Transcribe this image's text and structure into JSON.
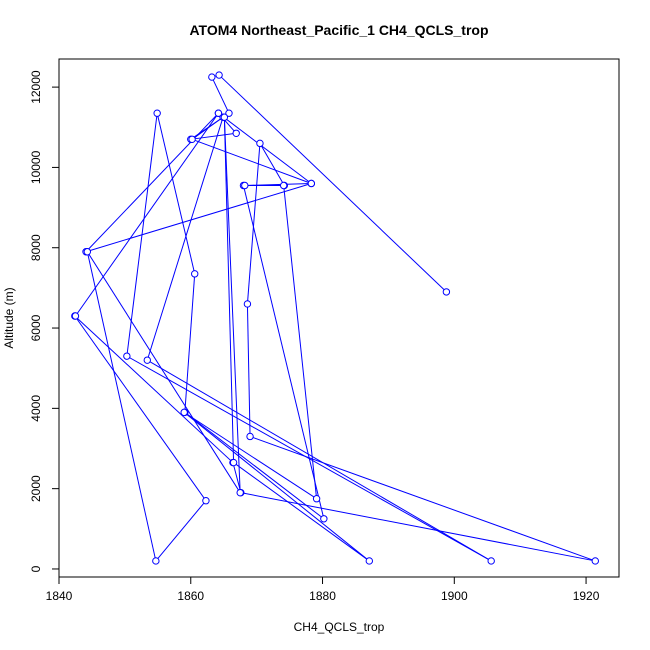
{
  "chart_data": {
    "type": "line",
    "title": "ATOM4 Northeast_Pacific_1 CH4_QCLS_trop",
    "xlabel": "CH4_QCLS_trop",
    "ylabel": "Altitude (m)",
    "xlim": [
      1840,
      1925
    ],
    "ylim": [
      -200,
      12700
    ],
    "xticks": [
      1840,
      1860,
      1880,
      1900,
      1920
    ],
    "yticks": [
      0,
      2000,
      4000,
      6000,
      8000,
      10000,
      12000
    ],
    "grid": false,
    "markers": "open-circle",
    "colors": {
      "series": "#0000ff",
      "axis": "#000000",
      "background": "#ffffff"
    },
    "series": [
      {
        "points": [
          [
            1898.8,
            6900
          ],
          [
            1864.3,
            12300
          ],
          [
            1863.2,
            12250
          ],
          [
            1865.8,
            11350
          ],
          [
            1860.0,
            10700
          ],
          [
            1866.9,
            10850
          ],
          [
            1864.2,
            11350
          ],
          [
            1844.1,
            7900
          ],
          [
            1878.3,
            9600
          ],
          [
            1860.2,
            10700
          ],
          [
            1864.9,
            11250
          ],
          [
            1853.4,
            5200
          ],
          [
            1905.6,
            200
          ],
          [
            1850.3,
            5300
          ],
          [
            1854.9,
            11350
          ],
          [
            1860.6,
            7350
          ],
          [
            1859.1,
            3900
          ],
          [
            1880.2,
            1250
          ],
          [
            1868.0,
            9550
          ],
          [
            1874.2,
            9550
          ],
          [
            1870.5,
            10600
          ],
          [
            1868.6,
            6600
          ],
          [
            1869.0,
            3300
          ],
          [
            1921.4,
            200
          ],
          [
            1867.6,
            1900
          ],
          [
            1866.4,
            2650
          ],
          [
            1842.4,
            6300
          ],
          [
            1862.3,
            1700
          ],
          [
            1854.7,
            200
          ],
          [
            1844.3,
            7900
          ],
          [
            1867.5,
            1900
          ],
          [
            1865.1,
            11250
          ],
          [
            1866.5,
            2650
          ],
          [
            1887.1,
            200
          ],
          [
            1859.0,
            3900
          ],
          [
            1879.1,
            1750
          ],
          [
            1874.1,
            9550
          ],
          [
            1868.2,
            9550
          ],
          [
            1878.3,
            9600
          ],
          [
            1864.2,
            11350
          ],
          [
            1842.5,
            6300
          ]
        ]
      }
    ]
  }
}
